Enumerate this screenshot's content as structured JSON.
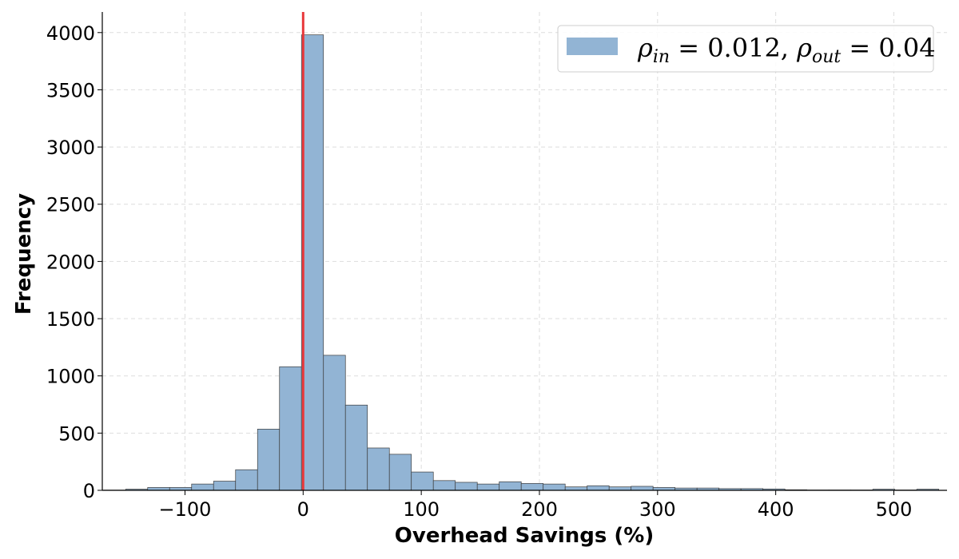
{
  "chart_data": {
    "type": "bar",
    "subtype": "histogram",
    "xlabel": "Overhead Savings (%)",
    "ylabel": "Frequency",
    "xlim": [
      -170,
      545
    ],
    "ylim": [
      0,
      4180
    ],
    "xticks": [
      -100,
      0,
      100,
      200,
      300,
      400,
      500
    ],
    "xtick_labels": [
      "−100",
      "0",
      "100",
      "200",
      "300",
      "400",
      "500"
    ],
    "yticks": [
      0,
      500,
      1000,
      1500,
      2000,
      2500,
      3000,
      3500,
      4000
    ],
    "ytick_labels": [
      "0",
      "500",
      "1000",
      "1500",
      "2000",
      "2500",
      "3000",
      "3500",
      "4000"
    ],
    "grid": true,
    "legend_placement": "top-right",
    "series": [
      {
        "name": "ρin = 0.012, ρout = 0.04",
        "color": "#92b4d4",
        "edge_color": "#3c3c3c",
        "bin_edges": [
          -168.8,
          -150.2,
          -131.6,
          -113.0,
          -94.4,
          -75.8,
          -57.2,
          -38.6,
          -20.0,
          -1.4,
          17.2,
          35.8,
          54.4,
          73.0,
          91.6,
          110.2,
          128.8,
          147.4,
          166.0,
          184.6,
          203.2,
          221.8,
          240.4,
          259.0,
          277.6,
          296.2,
          314.8,
          333.4,
          352.0,
          370.6,
          389.2,
          407.8,
          426.4,
          445.0,
          463.6,
          482.2,
          500.8,
          519.4,
          538.0
        ],
        "values": [
          2,
          10,
          25,
          25,
          55,
          80,
          180,
          535,
          1080,
          3980,
          1180,
          745,
          370,
          315,
          160,
          85,
          70,
          55,
          75,
          60,
          55,
          30,
          40,
          30,
          35,
          25,
          20,
          20,
          15,
          15,
          12,
          5,
          3,
          3,
          3,
          10,
          3,
          10
        ]
      }
    ],
    "reference_line": {
      "x": 0,
      "color": "#e8383b"
    }
  }
}
